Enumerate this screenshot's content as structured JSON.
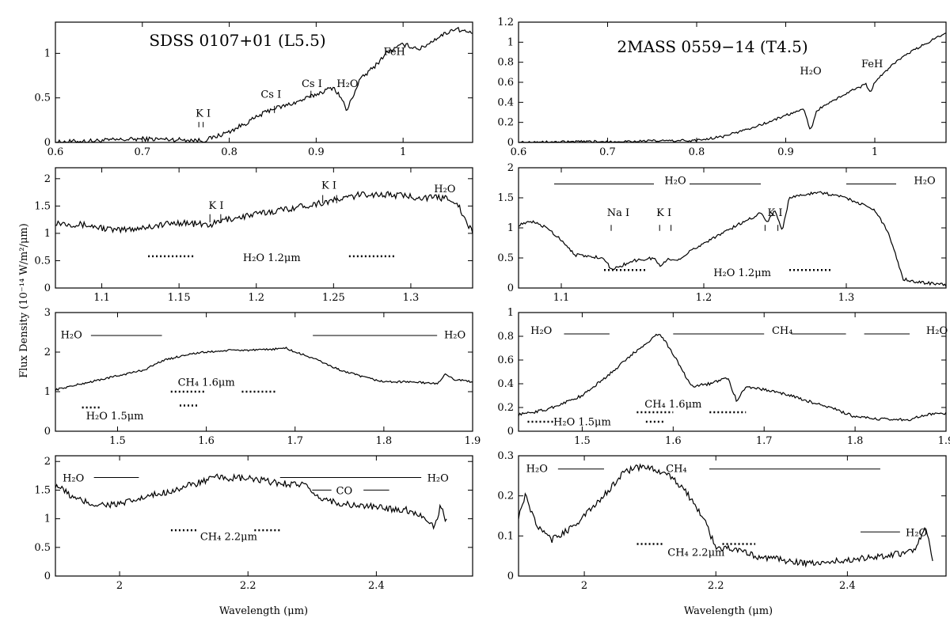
{
  "figure": {
    "ylabel": "Flux Density (10⁻¹⁴ W/m²/μm)",
    "xlabel_left": "Wavelength (μm)",
    "xlabel_right": "Wavelength (μm)"
  },
  "chart_data": [
    {
      "type": "line",
      "title": "SDSS 0107+01 (L5.5)",
      "xlim": [
        0.6,
        1.08
      ],
      "ylim": [
        0,
        1.35
      ],
      "xticks": [
        0.6,
        0.7,
        0.8,
        0.9,
        1.0
      ],
      "xtick_labels": [
        "0.6",
        "0.7",
        "0.8",
        "0.9",
        "1"
      ],
      "yticks": [
        0,
        0.5,
        1
      ],
      "ytick_labels": [
        "0",
        "0.5",
        "1"
      ],
      "series": [
        {
          "x": [
            0.6,
            0.62,
            0.65,
            0.7,
            0.75,
            0.77,
            0.78,
            0.8,
            0.82,
            0.84,
            0.85,
            0.86,
            0.88,
            0.9,
            0.92,
            0.93,
            0.935,
            0.95,
            0.97,
            0.98,
            1.0,
            1.02,
            1.04,
            1.06,
            1.08
          ],
          "y": [
            0,
            0.01,
            0.02,
            0.04,
            0.03,
            0.02,
            0.05,
            0.12,
            0.22,
            0.33,
            0.38,
            0.4,
            0.46,
            0.54,
            0.62,
            0.48,
            0.35,
            0.7,
            0.88,
            1.0,
            1.1,
            1.05,
            1.18,
            1.28,
            1.22
          ],
          "noise": 0.025
        }
      ],
      "labels": [
        {
          "text": "K I",
          "x": 0.77,
          "y": 0.29,
          "tick": [
            0.77,
            0.17,
            0.23
          ],
          "tick2": [
            0.765,
            0.17,
            0.23
          ]
        },
        {
          "text": "Cs I",
          "x": 0.848,
          "y": 0.5,
          "tick": [
            0.852,
            0.33,
            0.41
          ]
        },
        {
          "text": "Cs I",
          "x": 0.895,
          "y": 0.62,
          "tick": [
            0.894,
            0.5,
            0.58
          ]
        },
        {
          "text": "H₂O",
          "x": 0.936,
          "y": 0.62
        },
        {
          "text": "FeH",
          "x": 0.99,
          "y": 0.98
        }
      ],
      "bars": []
    },
    {
      "type": "line",
      "title": "",
      "xlim": [
        1.07,
        1.34
      ],
      "ylim": [
        0,
        2.2
      ],
      "xticks": [
        1.1,
        1.15,
        1.2,
        1.25,
        1.3
      ],
      "xtick_labels": [
        "1.1",
        "1.15",
        "1.2",
        "1.25",
        "1.3"
      ],
      "yticks": [
        0,
        0.5,
        1,
        1.5,
        2
      ],
      "ytick_labels": [
        "0",
        "0.5",
        "1",
        "1.5",
        "2"
      ],
      "series": [
        {
          "x": [
            1.07,
            1.09,
            1.11,
            1.13,
            1.15,
            1.17,
            1.18,
            1.2,
            1.22,
            1.24,
            1.25,
            1.27,
            1.29,
            1.31,
            1.325,
            1.33,
            1.335,
            1.34
          ],
          "y": [
            1.2,
            1.15,
            1.05,
            1.12,
            1.2,
            1.15,
            1.25,
            1.35,
            1.45,
            1.55,
            1.6,
            1.72,
            1.7,
            1.65,
            1.65,
            1.55,
            1.25,
            1.0
          ],
          "noise": 0.06
        }
      ],
      "labels": [
        {
          "text": "K I",
          "x": 1.174,
          "y": 1.45,
          "tick": [
            1.17,
            1.2,
            1.35
          ],
          "tick2": [
            1.177,
            1.2,
            1.35
          ]
        },
        {
          "text": "K I",
          "x": 1.247,
          "y": 1.82,
          "tick": [
            1.243,
            1.55,
            1.7
          ],
          "tick2": [
            1.252,
            1.55,
            1.7
          ]
        },
        {
          "text": "H₂O",
          "x": 1.322,
          "y": 1.75
        },
        {
          "text": "H₂O 1.2μm",
          "x": 1.21,
          "y": 0.49
        }
      ],
      "bars": [
        {
          "x1": 1.13,
          "x2": 1.16,
          "y": 0.58,
          "dotted": true
        },
        {
          "x1": 1.26,
          "x2": 1.29,
          "y": 0.58,
          "dotted": true
        }
      ]
    },
    {
      "type": "line",
      "title": "",
      "xlim": [
        1.43,
        1.9
      ],
      "ylim": [
        0,
        3
      ],
      "xticks": [
        1.5,
        1.6,
        1.7,
        1.8,
        1.9
      ],
      "xtick_labels": [
        "1.5",
        "1.6",
        "1.7",
        "1.8",
        "1.9"
      ],
      "yticks": [
        0,
        1,
        2,
        3
      ],
      "ytick_labels": [
        "0",
        "1",
        "2",
        "3"
      ],
      "series": [
        {
          "x": [
            1.43,
            1.45,
            1.48,
            1.5,
            1.53,
            1.55,
            1.58,
            1.6,
            1.63,
            1.66,
            1.69,
            1.7,
            1.72,
            1.75,
            1.78,
            1.8,
            1.83,
            1.86,
            1.87,
            1.88,
            1.9
          ],
          "y": [
            1.05,
            1.15,
            1.3,
            1.4,
            1.55,
            1.78,
            1.95,
            2.0,
            2.05,
            2.05,
            2.1,
            2.0,
            1.85,
            1.55,
            1.35,
            1.25,
            1.25,
            1.2,
            1.45,
            1.3,
            1.25
          ],
          "noise": 0.025
        }
      ],
      "labels": [
        {
          "text": "H₂O",
          "x": 1.448,
          "y": 2.35
        },
        {
          "text": "H₂O",
          "x": 1.88,
          "y": 2.35
        },
        {
          "text": "CH₄ 1.6μm",
          "x": 1.6,
          "y": 1.15
        },
        {
          "text": "H₂O 1.5μm",
          "x": 1.497,
          "y": 0.3
        }
      ],
      "bars": [
        {
          "x1": 1.47,
          "x2": 1.55,
          "y": 2.42,
          "dotted": false
        },
        {
          "x1": 1.72,
          "x2": 1.86,
          "y": 2.42,
          "dotted": false
        },
        {
          "x1": 1.46,
          "x2": 1.48,
          "y": 0.6,
          "dotted": true
        },
        {
          "x1": 1.56,
          "x2": 1.6,
          "y": 1.0,
          "dotted": true
        },
        {
          "x1": 1.64,
          "x2": 1.68,
          "y": 1.0,
          "dotted": true
        },
        {
          "x1": 1.57,
          "x2": 1.59,
          "y": 0.65,
          "dotted": true
        }
      ]
    },
    {
      "type": "line",
      "title": "",
      "xlim": [
        1.9,
        2.55
      ],
      "ylim": [
        0,
        2.1
      ],
      "xticks": [
        2.0,
        2.2,
        2.4
      ],
      "xtick_labels": [
        "2",
        "2.2",
        "2.4"
      ],
      "yticks": [
        0,
        0.5,
        1,
        1.5,
        2
      ],
      "ytick_labels": [
        "0",
        "0.5",
        "1",
        "1.5",
        "2"
      ],
      "series": [
        {
          "x": [
            1.9,
            1.93,
            1.96,
            2.0,
            2.05,
            2.1,
            2.15,
            2.2,
            2.25,
            2.29,
            2.3,
            2.35,
            2.4,
            2.45,
            2.48,
            2.49,
            2.5,
            2.51
          ],
          "y": [
            1.6,
            1.35,
            1.25,
            1.25,
            1.4,
            1.55,
            1.72,
            1.7,
            1.62,
            1.6,
            1.4,
            1.25,
            1.2,
            1.15,
            1.0,
            0.85,
            1.2,
            0.95
          ],
          "noise": 0.06
        }
      ],
      "labels": [
        {
          "text": "H₂O",
          "x": 1.928,
          "y": 1.65
        },
        {
          "text": "H₂O",
          "x": 2.496,
          "y": 1.65
        },
        {
          "text": "CO",
          "x": 2.35,
          "y": 1.43
        },
        {
          "text": "CH₄ 2.2μm",
          "x": 2.17,
          "y": 0.63
        }
      ],
      "bars": [
        {
          "x1": 1.96,
          "x2": 2.03,
          "y": 1.72,
          "dotted": false
        },
        {
          "x1": 2.25,
          "x2": 2.47,
          "y": 1.72,
          "dotted": false
        },
        {
          "x1": 2.3,
          "x2": 2.33,
          "y": 1.5,
          "dotted": false
        },
        {
          "x1": 2.38,
          "x2": 2.42,
          "y": 1.5,
          "dotted": false
        },
        {
          "x1": 2.08,
          "x2": 2.12,
          "y": 0.8,
          "dotted": true
        },
        {
          "x1": 2.21,
          "x2": 2.25,
          "y": 0.8,
          "dotted": true
        }
      ]
    },
    {
      "type": "line",
      "title": "2MASS 0559−14 (T4.5)",
      "xlim": [
        0.6,
        1.08
      ],
      "ylim": [
        0,
        1.2
      ],
      "xticks": [
        0.6,
        0.7,
        0.8,
        0.9,
        1.0
      ],
      "xtick_labels": [
        "0.6",
        "0.7",
        "0.8",
        "0.9",
        "1"
      ],
      "yticks": [
        0,
        0.2,
        0.4,
        0.6,
        0.8,
        1,
        1.2
      ],
      "ytick_labels": [
        "0",
        "0.2",
        "0.4",
        "0.6",
        "0.8",
        "1",
        "1.2"
      ],
      "series": [
        {
          "x": [
            0.6,
            0.7,
            0.8,
            0.83,
            0.86,
            0.88,
            0.9,
            0.92,
            0.928,
            0.935,
            0.95,
            0.97,
            0.99,
            0.995,
            1.0,
            1.02,
            1.04,
            1.06,
            1.08
          ],
          "y": [
            0,
            0.01,
            0.02,
            0.06,
            0.14,
            0.2,
            0.27,
            0.33,
            0.12,
            0.32,
            0.4,
            0.5,
            0.58,
            0.5,
            0.6,
            0.78,
            0.9,
            1.0,
            1.1
          ],
          "noise": 0.012
        }
      ],
      "labels": [
        {
          "text": "H₂O",
          "x": 0.928,
          "y": 0.68
        },
        {
          "text": "FeH",
          "x": 0.997,
          "y": 0.75
        }
      ],
      "bars": []
    },
    {
      "type": "line",
      "title": "",
      "xlim": [
        1.07,
        1.37
      ],
      "ylim": [
        0,
        2
      ],
      "xticks": [
        1.1,
        1.2,
        1.3
      ],
      "xtick_labels": [
        "1.1",
        "1.2",
        "1.3"
      ],
      "yticks": [
        0,
        0.5,
        1,
        1.5,
        2
      ],
      "ytick_labels": [
        "0",
        "0.5",
        "1",
        "1.5",
        "2"
      ],
      "series": [
        {
          "x": [
            1.07,
            1.08,
            1.09,
            1.1,
            1.11,
            1.13,
            1.135,
            1.15,
            1.165,
            1.17,
            1.175,
            1.18,
            1.2,
            1.22,
            1.24,
            1.245,
            1.25,
            1.255,
            1.26,
            1.28,
            1.3,
            1.32,
            1.33,
            1.34,
            1.35,
            1.37
          ],
          "y": [
            1.05,
            1.1,
            1.0,
            0.8,
            0.55,
            0.5,
            0.3,
            0.45,
            0.5,
            0.35,
            0.5,
            0.45,
            0.75,
            1.0,
            1.25,
            1.1,
            1.3,
            0.95,
            1.5,
            1.6,
            1.5,
            1.3,
            0.9,
            0.15,
            0.1,
            0.05
          ],
          "noise": 0.025
        }
      ],
      "labels": [
        {
          "text": "Na I",
          "x": 1.14,
          "y": 1.2,
          "tick": [
            1.135,
            0.95,
            1.05
          ]
        },
        {
          "text": "K I",
          "x": 1.172,
          "y": 1.2,
          "tick": [
            1.169,
            0.95,
            1.05
          ],
          "tick2": [
            1.177,
            0.95,
            1.05
          ]
        },
        {
          "text": "K I",
          "x": 1.25,
          "y": 1.2,
          "tick": [
            1.243,
            0.95,
            1.05
          ],
          "tick2": [
            1.252,
            0.95,
            1.05
          ]
        },
        {
          "text": "H₂O",
          "x": 1.18,
          "y": 1.73
        },
        {
          "text": "H₂O",
          "x": 1.355,
          "y": 1.73
        },
        {
          "text": "H₂O 1.2μm",
          "x": 1.227,
          "y": 0.2
        }
      ],
      "bars": [
        {
          "x1": 1.095,
          "x2": 1.165,
          "y": 1.73,
          "dotted": false
        },
        {
          "x1": 1.19,
          "x2": 1.24,
          "y": 1.73,
          "dotted": false
        },
        {
          "x1": 1.3,
          "x2": 1.335,
          "y": 1.73,
          "dotted": false
        },
        {
          "x1": 1.13,
          "x2": 1.16,
          "y": 0.3,
          "dotted": true
        },
        {
          "x1": 1.26,
          "x2": 1.29,
          "y": 0.3,
          "dotted": true
        }
      ]
    },
    {
      "type": "line",
      "title": "",
      "xlim": [
        1.43,
        1.9
      ],
      "ylim": [
        0,
        1
      ],
      "xticks": [
        1.5,
        1.6,
        1.7,
        1.8,
        1.9
      ],
      "xtick_labels": [
        "1.5",
        "1.6",
        "1.7",
        "1.8",
        "1.9"
      ],
      "yticks": [
        0,
        0.2,
        0.4,
        0.6,
        0.8,
        1
      ],
      "ytick_labels": [
        "0",
        "0.2",
        "0.4",
        "0.6",
        "0.8",
        "1"
      ],
      "series": [
        {
          "x": [
            1.43,
            1.46,
            1.5,
            1.53,
            1.56,
            1.585,
            1.6,
            1.62,
            1.64,
            1.66,
            1.67,
            1.68,
            1.7,
            1.72,
            1.75,
            1.78,
            1.8,
            1.83,
            1.86,
            1.88,
            1.9
          ],
          "y": [
            0.14,
            0.18,
            0.3,
            0.48,
            0.68,
            0.83,
            0.65,
            0.38,
            0.4,
            0.45,
            0.25,
            0.38,
            0.35,
            0.32,
            0.25,
            0.18,
            0.12,
            0.1,
            0.1,
            0.14,
            0.15
          ],
          "noise": 0.012
        }
      ],
      "labels": [
        {
          "text": "H₂O",
          "x": 1.455,
          "y": 0.82
        },
        {
          "text": "CH₄",
          "x": 1.72,
          "y": 0.82
        },
        {
          "text": "H₂O",
          "x": 1.89,
          "y": 0.82
        },
        {
          "text": "CH₄ 1.6μm",
          "x": 1.6,
          "y": 0.2
        },
        {
          "text": "H₂O 1.5μm",
          "x": 1.5,
          "y": 0.05
        }
      ],
      "bars": [
        {
          "x1": 1.48,
          "x2": 1.53,
          "y": 0.82,
          "dotted": false
        },
        {
          "x1": 1.6,
          "x2": 1.7,
          "y": 0.82,
          "dotted": false
        },
        {
          "x1": 1.73,
          "x2": 1.79,
          "y": 0.82,
          "dotted": false
        },
        {
          "x1": 1.81,
          "x2": 1.86,
          "y": 0.82,
          "dotted": false
        },
        {
          "x1": 1.44,
          "x2": 1.47,
          "y": 0.08,
          "dotted": true
        },
        {
          "x1": 1.56,
          "x2": 1.6,
          "y": 0.16,
          "dotted": true
        },
        {
          "x1": 1.64,
          "x2": 1.68,
          "y": 0.16,
          "dotted": true
        },
        {
          "x1": 1.57,
          "x2": 1.59,
          "y": 0.08,
          "dotted": true
        }
      ]
    },
    {
      "type": "line",
      "title": "",
      "xlim": [
        1.9,
        2.55
      ],
      "ylim": [
        0,
        0.3
      ],
      "xticks": [
        2.0,
        2.2,
        2.4
      ],
      "xtick_labels": [
        "2",
        "2.2",
        "2.4"
      ],
      "yticks": [
        0,
        0.1,
        0.2,
        0.3
      ],
      "ytick_labels": [
        "0",
        "0.1",
        "0.2",
        "0.3"
      ],
      "series": [
        {
          "x": [
            1.9,
            1.91,
            1.93,
            1.95,
            1.98,
            2.0,
            2.03,
            2.06,
            2.08,
            2.1,
            2.12,
            2.15,
            2.18,
            2.2,
            2.22,
            2.26,
            2.3,
            2.35,
            2.4,
            2.45,
            2.5,
            2.52,
            2.53
          ],
          "y": [
            0.15,
            0.2,
            0.12,
            0.09,
            0.12,
            0.15,
            0.2,
            0.26,
            0.27,
            0.27,
            0.26,
            0.22,
            0.15,
            0.07,
            0.07,
            0.05,
            0.04,
            0.03,
            0.04,
            0.05,
            0.06,
            0.12,
            0.03
          ],
          "noise": 0.008
        }
      ],
      "labels": [
        {
          "text": "H₂O",
          "x": 1.928,
          "y": 0.26
        },
        {
          "text": "CH₄",
          "x": 2.14,
          "y": 0.26
        },
        {
          "text": "H₂O",
          "x": 2.505,
          "y": 0.1
        },
        {
          "text": "CH₄ 2.2μm",
          "x": 2.17,
          "y": 0.05
        }
      ],
      "bars": [
        {
          "x1": 1.96,
          "x2": 2.03,
          "y": 0.267,
          "dotted": false
        },
        {
          "x1": 2.19,
          "x2": 2.45,
          "y": 0.267,
          "dotted": false
        },
        {
          "x1": 2.42,
          "x2": 2.48,
          "y": 0.11,
          "dotted": false
        },
        {
          "x1": 2.08,
          "x2": 2.12,
          "y": 0.08,
          "dotted": true
        },
        {
          "x1": 2.21,
          "x2": 2.26,
          "y": 0.08,
          "dotted": true
        }
      ]
    }
  ]
}
